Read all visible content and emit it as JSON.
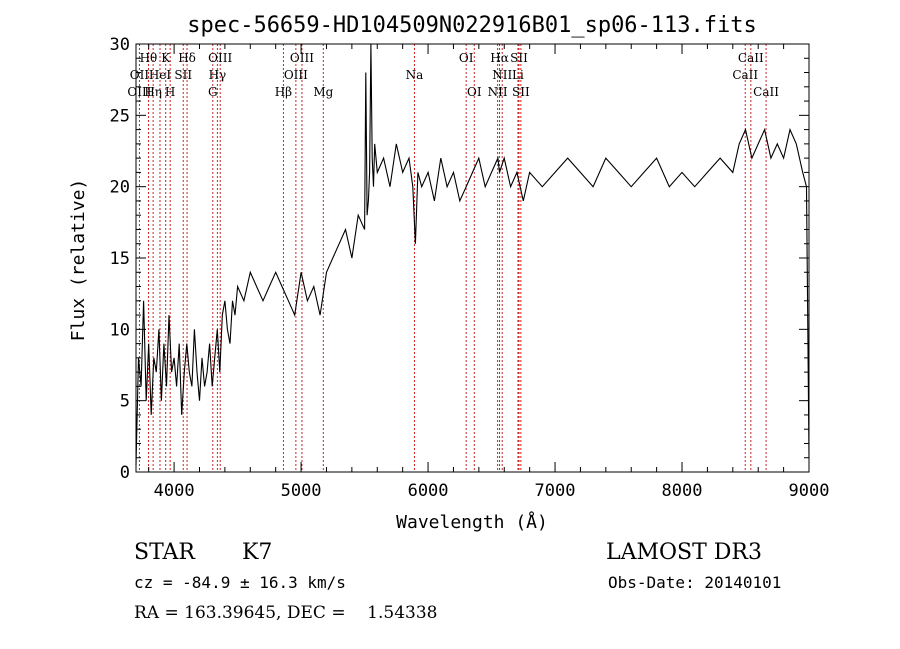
{
  "chart_data": {
    "type": "line",
    "title": "spec-56659-HD104509N022916B01_sp06-113.fits",
    "xlabel": "Wavelength (Å)",
    "ylabel": "Flux (relative)",
    "xlim": [
      3700,
      9000
    ],
    "ylim": [
      0,
      30
    ],
    "x_ticks": [
      4000,
      5000,
      6000,
      7000,
      8000,
      9000
    ],
    "y_ticks": [
      0,
      5,
      10,
      15,
      20,
      25,
      30
    ],
    "line_color": "#000000",
    "marker_color": "#cc2222",
    "series": [
      {
        "x": [
          3700,
          3720,
          3740,
          3760,
          3780,
          3800,
          3820,
          3840,
          3860,
          3880,
          3900,
          3920,
          3940,
          3960,
          3980,
          4000,
          4020,
          4040,
          4060,
          4080,
          4100,
          4120,
          4140,
          4160,
          4180,
          4200,
          4220,
          4240,
          4260,
          4280,
          4300,
          4320,
          4340,
          4360,
          4380,
          4400,
          4420,
          4440,
          4460,
          4480,
          4500,
          4550,
          4600,
          4650,
          4700,
          4750,
          4800,
          4850,
          4900,
          4950,
          5000,
          5050,
          5100,
          5150,
          5200,
          5250,
          5300,
          5350,
          5400,
          5450,
          5500,
          5510,
          5520,
          5530,
          5540,
          5550,
          5560,
          5570,
          5580,
          5600,
          5650,
          5700,
          5750,
          5800,
          5850,
          5880,
          5900,
          5920,
          5950,
          6000,
          6050,
          6100,
          6150,
          6200,
          6250,
          6300,
          6350,
          6400,
          6450,
          6500,
          6550,
          6563,
          6600,
          6650,
          6700,
          6750,
          6800,
          6900,
          7000,
          7100,
          7200,
          7300,
          7400,
          7500,
          7600,
          7700,
          7800,
          7900,
          8000,
          8100,
          8200,
          8300,
          8400,
          8450,
          8500,
          8550,
          8600,
          8650,
          8700,
          8750,
          8800,
          8850,
          8900,
          8950,
          8980,
          9000
        ],
        "y": [
          0.5,
          8,
          6,
          12,
          5,
          9,
          4,
          8,
          7,
          10,
          5,
          9,
          6,
          11,
          7,
          8,
          6,
          9,
          4,
          7,
          9,
          7,
          6,
          10,
          7,
          5,
          8,
          6,
          7,
          9,
          6,
          8,
          10,
          7,
          11,
          12,
          10,
          9,
          12,
          11,
          13,
          12,
          14,
          13,
          12,
          13,
          14,
          13,
          12,
          11,
          14,
          12,
          13,
          11,
          14,
          15,
          16,
          17,
          15,
          18,
          17,
          28,
          18,
          19,
          21,
          30,
          22,
          20,
          23,
          21,
          22,
          20,
          23,
          21,
          22,
          20,
          16,
          21,
          20,
          21,
          19,
          22,
          20,
          21,
          19,
          20,
          21,
          22,
          20,
          21,
          22,
          21,
          22,
          20,
          21,
          19,
          21,
          20,
          21,
          22,
          21,
          20,
          22,
          21,
          20,
          21,
          22,
          20,
          21,
          20,
          21,
          22,
          21,
          23,
          24,
          22,
          23,
          24,
          22,
          23,
          22,
          24,
          23,
          21,
          20,
          1
        ]
      }
    ],
    "line_labels": [
      {
        "text": "Hθ",
        "wl": 3798,
        "row": 0
      },
      {
        "text": "OII",
        "wl": 3727,
        "row": 1
      },
      {
        "text": "OIII",
        "wl": 3727,
        "row": 2
      },
      {
        "text": "K",
        "wl": 3934,
        "row": 0
      },
      {
        "text": "HeI",
        "wl": 3889,
        "row": 1
      },
      {
        "text": "Hη",
        "wl": 3835,
        "row": 2
      },
      {
        "text": "SII",
        "wl": 4072,
        "row": 1
      },
      {
        "text": "H",
        "wl": 3969,
        "row": 2
      },
      {
        "text": "Hδ",
        "wl": 4102,
        "row": 0
      },
      {
        "text": "OIII",
        "wl": 4363,
        "row": 0
      },
      {
        "text": "Hγ",
        "wl": 4341,
        "row": 1
      },
      {
        "text": "G",
        "wl": 4305,
        "row": 2
      },
      {
        "text": "OIII",
        "wl": 5007,
        "row": 0
      },
      {
        "text": "OIII",
        "wl": 4959,
        "row": 1
      },
      {
        "text": "Hβ",
        "wl": 4861,
        "row": 2
      },
      {
        "text": "Mg",
        "wl": 5175,
        "row": 2
      },
      {
        "text": "Na",
        "wl": 5893,
        "row": 1
      },
      {
        "text": "OI",
        "wl": 6300,
        "row": 0
      },
      {
        "text": "OI",
        "wl": 6364,
        "row": 2
      },
      {
        "text": "Hα",
        "wl": 6563,
        "row": 0
      },
      {
        "text": "SII",
        "wl": 6716,
        "row": 0
      },
      {
        "text": "NII",
        "wl": 6584,
        "row": 1
      },
      {
        "text": "Li",
        "wl": 6708,
        "row": 1
      },
      {
        "text": "NII",
        "wl": 6548,
        "row": 2
      },
      {
        "text": "SII",
        "wl": 6731,
        "row": 2
      },
      {
        "text": "CaII",
        "wl": 8542,
        "row": 0
      },
      {
        "text": "CaII",
        "wl": 8498,
        "row": 1
      },
      {
        "text": "CaII",
        "wl": 8662,
        "row": 2
      }
    ],
    "marker_lines": [
      3727,
      3798,
      3835,
      3889,
      3934,
      3969,
      4072,
      4102,
      4305,
      4341,
      4363,
      4861,
      4959,
      5007,
      5175,
      5893,
      6300,
      6364,
      6548,
      6563,
      6584,
      6708,
      6716,
      6731,
      8498,
      8542,
      8662
    ]
  },
  "info": {
    "object_class": "STAR",
    "subclass": "K7",
    "survey": "LAMOST DR3",
    "redshift": "cz = -84.9 ± 16.3 km/s",
    "obs_date": "Obs-Date: 20140101",
    "coords": "RA = 163.39645, DEC =    1.54338"
  }
}
